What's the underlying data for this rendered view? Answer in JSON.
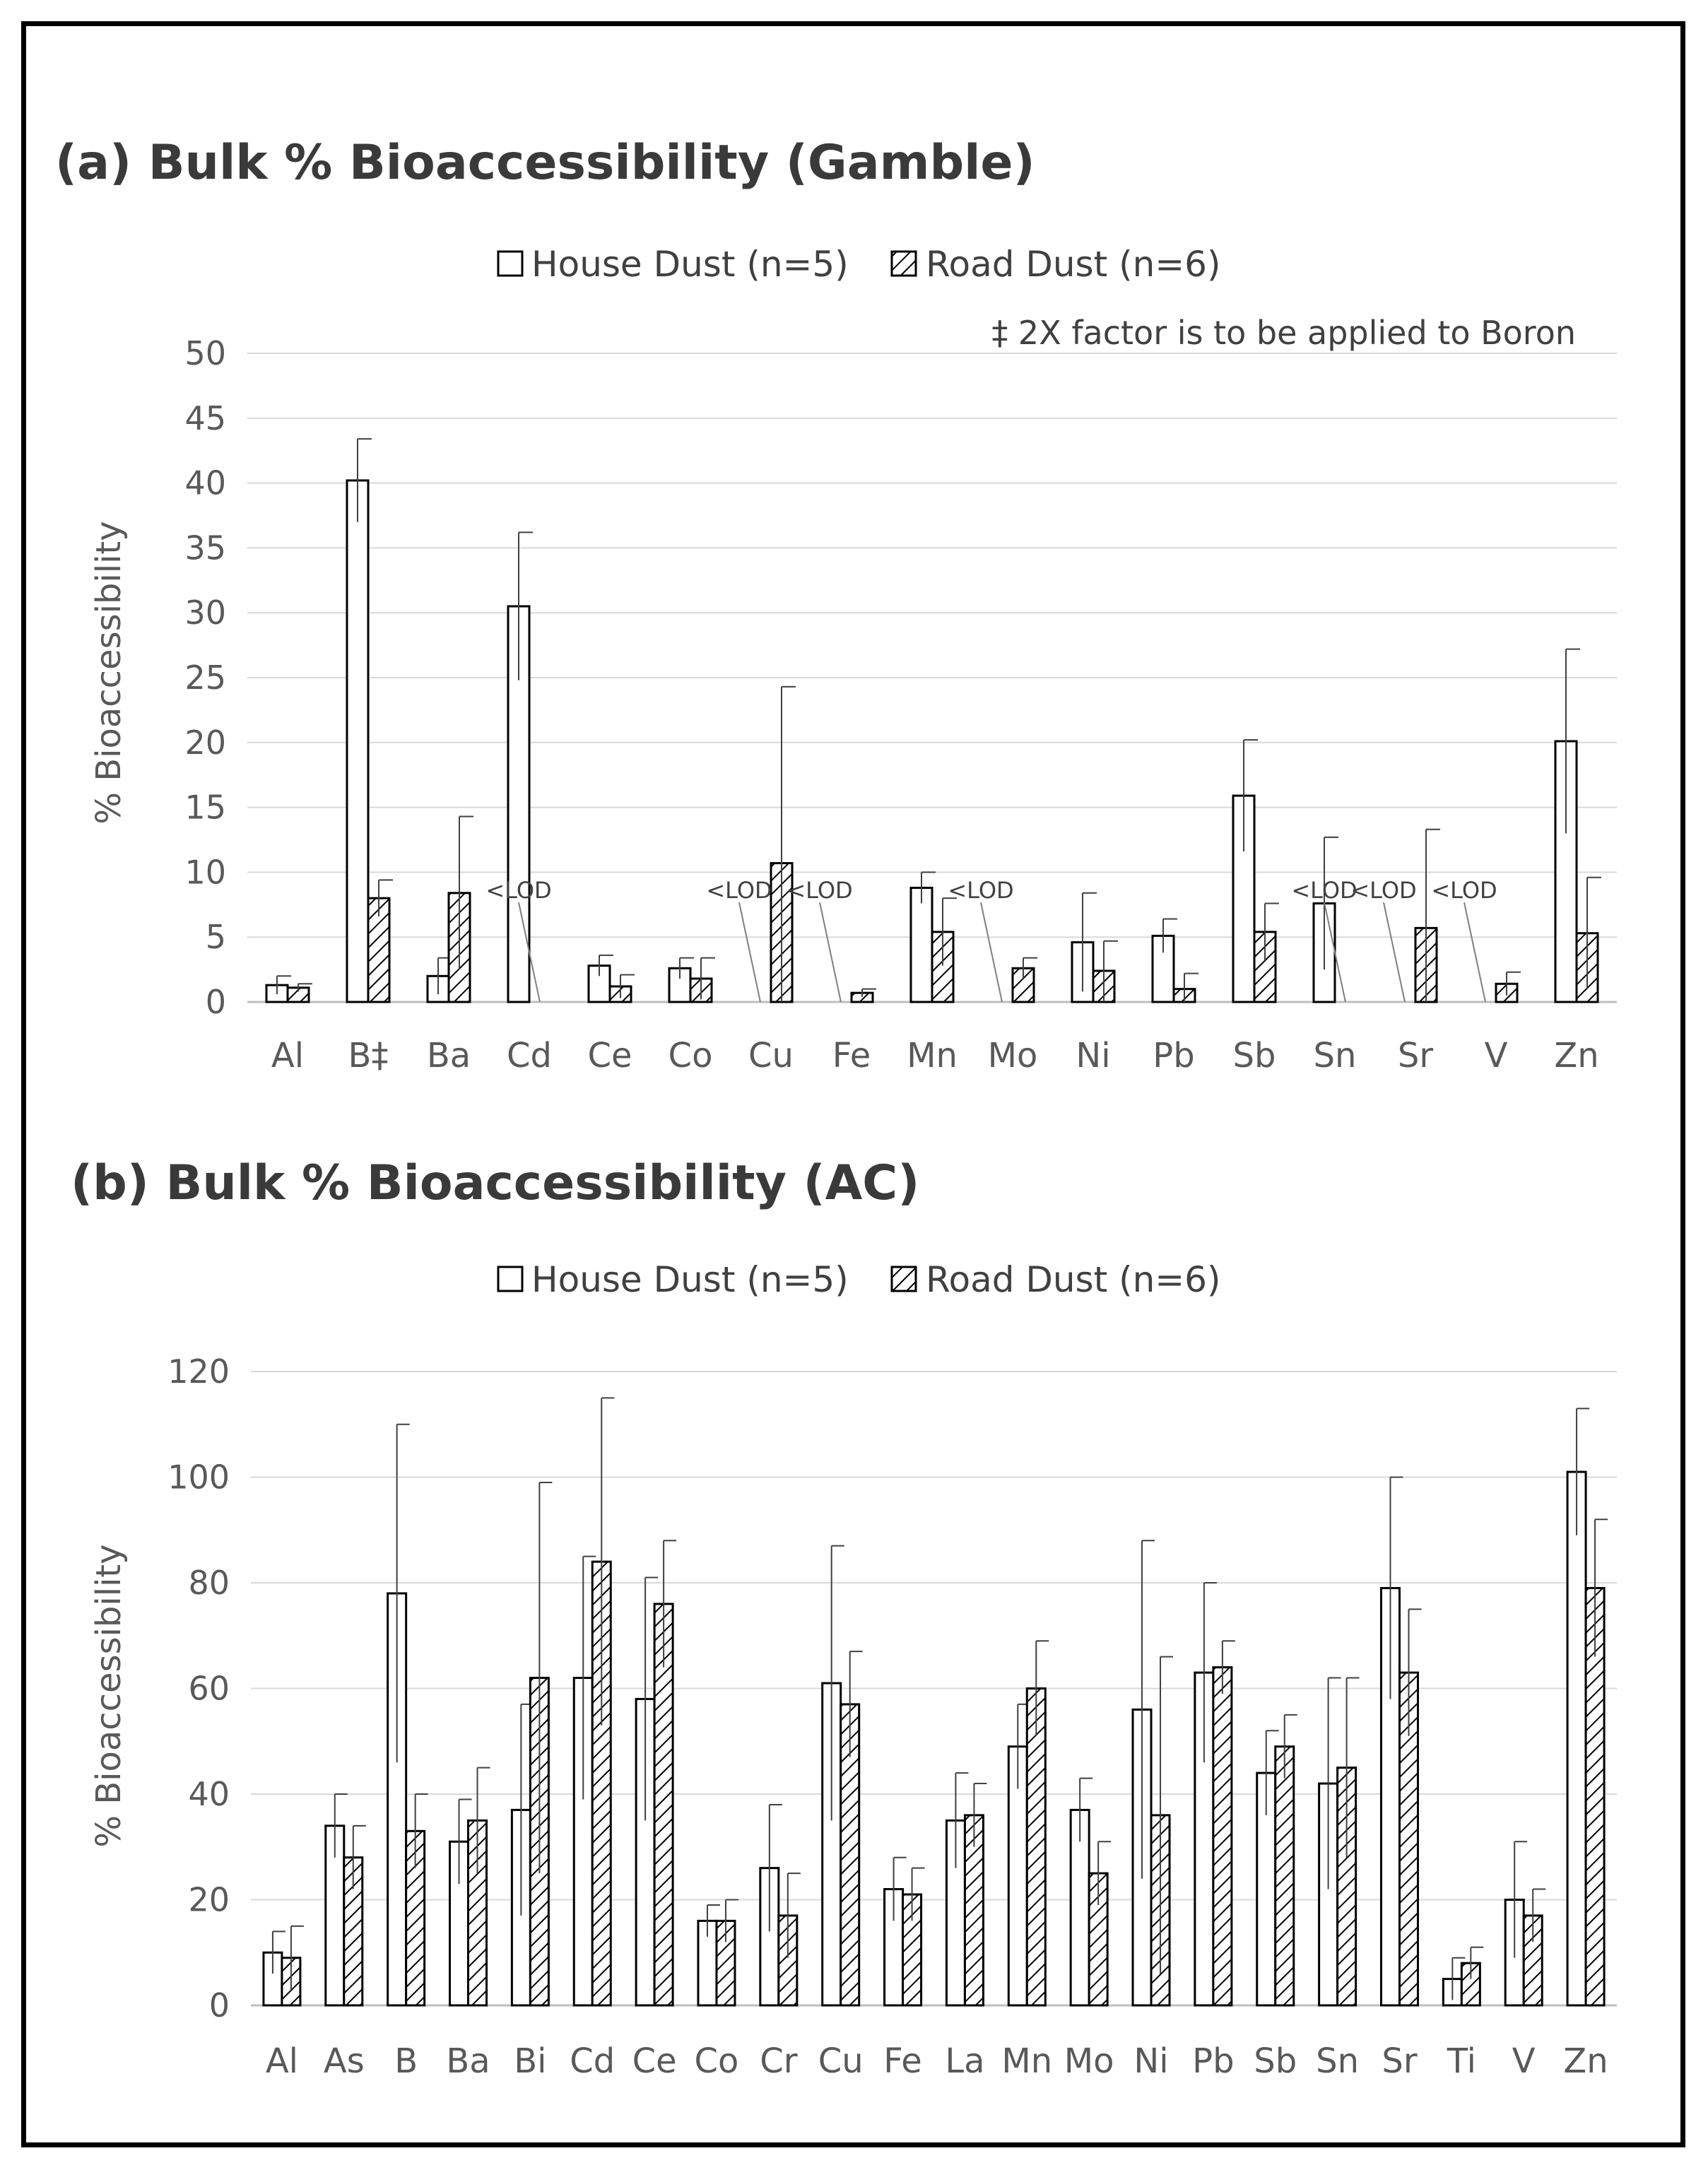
{
  "chart_data": [
    {
      "type": "bar",
      "title": "(a) Bulk % Bioaccessibility (Gamble)",
      "ylabel": "% Bioaccessibility",
      "xlabel": "",
      "ylim": [
        0,
        50
      ],
      "yticks": [
        0,
        5,
        10,
        15,
        20,
        25,
        30,
        35,
        40,
        45,
        50
      ],
      "note": "‡ 2X factor is to be applied to Boron",
      "lod_label": "<LOD",
      "categories": [
        "Al",
        "B‡",
        "Ba",
        "Cd",
        "Ce",
        "Co",
        "Cu",
        "Fe",
        "Mn",
        "Mo",
        "Ni",
        "Pb",
        "Sb",
        "Sn",
        "Sr",
        "V",
        "Zn"
      ],
      "series": [
        {
          "name": "House Dust (n=5)",
          "values": [
            1.3,
            40.2,
            2.0,
            30.5,
            2.8,
            2.6,
            null,
            null,
            8.8,
            null,
            4.6,
            5.1,
            15.9,
            7.6,
            null,
            null,
            20.1
          ],
          "error_plus": [
            0.7,
            3.2,
            1.4,
            5.7,
            0.8,
            0.8,
            null,
            null,
            1.2,
            null,
            3.8,
            1.3,
            4.3,
            5.1,
            null,
            null,
            7.1
          ],
          "error_minus": [
            0.7,
            3.2,
            1.4,
            5.7,
            0.8,
            0.8,
            null,
            null,
            1.2,
            null,
            3.8,
            1.3,
            4.3,
            5.1,
            null,
            null,
            7.1
          ]
        },
        {
          "name": "Road Dust (n=6)",
          "values": [
            1.1,
            8.0,
            8.4,
            null,
            1.2,
            1.8,
            10.7,
            0.7,
            5.4,
            2.6,
            2.4,
            1.0,
            5.4,
            null,
            5.7,
            1.4,
            5.3
          ],
          "error_plus": [
            0.3,
            1.4,
            5.9,
            null,
            0.9,
            1.6,
            13.6,
            0.3,
            2.6,
            0.8,
            2.3,
            1.2,
            2.2,
            null,
            7.6,
            0.9,
            4.3
          ],
          "error_minus": [
            0.3,
            1.4,
            5.9,
            null,
            0.9,
            1.6,
            10.7,
            0.3,
            2.6,
            0.8,
            2.3,
            1.0,
            2.2,
            null,
            5.7,
            0.9,
            4.3
          ]
        }
      ],
      "lod_markers": [
        {
          "category": "Cd",
          "series": "Road Dust (n=6)"
        },
        {
          "category": "Cu",
          "series": "House Dust (n=5)"
        },
        {
          "category": "Fe",
          "series": "House Dust (n=5)"
        },
        {
          "category": "Mo",
          "series": "House Dust (n=5)"
        },
        {
          "category": "Sn",
          "series": "Road Dust (n=6)"
        },
        {
          "category": "Sr",
          "series": "House Dust (n=5)"
        },
        {
          "category": "V",
          "series": "House Dust (n=5)"
        }
      ]
    },
    {
      "type": "bar",
      "title": "(b) Bulk % Bioaccessibility (AC)",
      "ylabel": "% Bioaccessibility",
      "xlabel": "",
      "ylim": [
        0,
        120
      ],
      "yticks": [
        0,
        20,
        40,
        60,
        80,
        100,
        120
      ],
      "categories": [
        "Al",
        "As",
        "B",
        "Ba",
        "Bi",
        "Cd",
        "Ce",
        "Co",
        "Cr",
        "Cu",
        "Fe",
        "La",
        "Mn",
        "Mo",
        "Ni",
        "Pb",
        "Sb",
        "Sn",
        "Sr",
        "Ti",
        "V",
        "Zn"
      ],
      "series": [
        {
          "name": "House Dust (n=5)",
          "values": [
            10,
            34,
            78,
            31,
            37,
            62,
            58,
            16,
            26,
            61,
            22,
            35,
            49,
            37,
            56,
            63,
            44,
            42,
            79,
            5,
            20,
            101
          ],
          "error_plus": [
            4,
            6,
            32,
            8,
            20,
            23,
            23,
            3,
            12,
            26,
            6,
            9,
            8,
            6,
            32,
            17,
            8,
            20,
            21,
            4,
            11,
            12
          ],
          "error_minus": [
            4,
            6,
            32,
            8,
            20,
            23,
            23,
            3,
            12,
            26,
            6,
            9,
            8,
            6,
            32,
            17,
            8,
            20,
            21,
            4,
            11,
            12
          ]
        },
        {
          "name": "Road Dust (n=6)",
          "values": [
            9,
            28,
            33,
            35,
            62,
            84,
            76,
            16,
            17,
            57,
            21,
            36,
            60,
            25,
            36,
            64,
            49,
            45,
            63,
            8,
            17,
            79
          ],
          "error_plus": [
            6,
            6,
            7,
            10,
            37,
            31,
            12,
            4,
            8,
            10,
            5,
            6,
            9,
            6,
            30,
            5,
            6,
            17,
            12,
            3,
            5,
            13
          ],
          "error_minus": [
            6,
            6,
            7,
            10,
            37,
            31,
            12,
            4,
            8,
            10,
            5,
            6,
            9,
            6,
            30,
            5,
            6,
            17,
            12,
            3,
            5,
            13
          ]
        }
      ]
    }
  ],
  "colors": {
    "bar_fill": "#ffffff",
    "bar_stroke": "#000000",
    "hatch": "#000000",
    "grid": "#d9d9d9",
    "axis": "#bfbfbf",
    "frame": "#000000",
    "text": "#595959"
  }
}
